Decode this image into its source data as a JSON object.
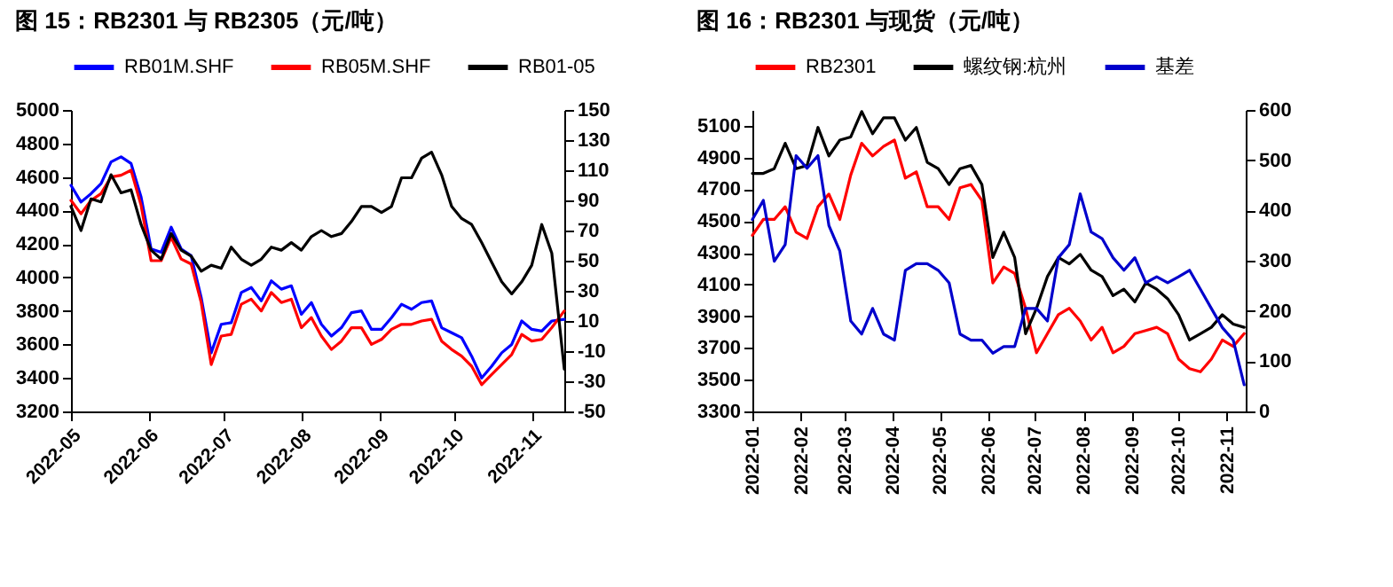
{
  "chart_data": [
    {
      "type": "line",
      "title": "图 15：RB2301 与 RB2305（元/吨）",
      "legend": "top",
      "grid": false,
      "x": [
        "2022-05-01",
        "2022-05-05",
        "2022-05-09",
        "2022-05-13",
        "2022-05-17",
        "2022-05-21",
        "2022-05-25",
        "2022-05-29",
        "2022-06-02",
        "2022-06-06",
        "2022-06-10",
        "2022-06-14",
        "2022-06-18",
        "2022-06-22",
        "2022-06-26",
        "2022-06-30",
        "2022-07-04",
        "2022-07-08",
        "2022-07-12",
        "2022-07-16",
        "2022-07-20",
        "2022-07-24",
        "2022-07-28",
        "2022-08-01",
        "2022-08-05",
        "2022-08-09",
        "2022-08-13",
        "2022-08-17",
        "2022-08-21",
        "2022-08-25",
        "2022-08-29",
        "2022-09-02",
        "2022-09-06",
        "2022-09-10",
        "2022-09-14",
        "2022-09-18",
        "2022-09-22",
        "2022-09-26",
        "2022-09-30",
        "2022-10-04",
        "2022-10-08",
        "2022-10-12",
        "2022-10-16",
        "2022-10-20",
        "2022-10-24",
        "2022-10-28",
        "2022-11-01",
        "2022-11-05",
        "2022-11-09",
        "2022-11-14"
      ],
      "xlim": [
        "2022-05-01",
        "2022-11-14"
      ],
      "xticks": [
        {
          "value": "2022-05",
          "label": "2022-05"
        },
        {
          "value": "2022-06",
          "label": "2022-06"
        },
        {
          "value": "2022-07",
          "label": "2022-07"
        },
        {
          "value": "2022-08",
          "label": "2022-08"
        },
        {
          "value": "2022-09",
          "label": "2022-09"
        },
        {
          "value": "2022-10",
          "label": "2022-10"
        },
        {
          "value": "2022-11",
          "label": "2022-11"
        }
      ],
      "ylim": [
        3200,
        5000
      ],
      "yticks": [
        3200,
        3400,
        3600,
        3800,
        4000,
        4200,
        4400,
        4600,
        4800,
        5000
      ],
      "y2lim": [
        -50,
        150
      ],
      "y2ticks": [
        -50,
        -30,
        -10,
        10,
        30,
        50,
        70,
        90,
        110,
        130,
        150
      ],
      "series": [
        {
          "name": "RB01M.SHF",
          "color": "#0000ff",
          "values": [
            4550,
            4450,
            4500,
            4560,
            4690,
            4720,
            4680,
            4480,
            4170,
            4150,
            4300,
            4170,
            4130,
            3880,
            3550,
            3720,
            3730,
            3910,
            3940,
            3860,
            3980,
            3930,
            3950,
            3780,
            3850,
            3720,
            3650,
            3700,
            3790,
            3800,
            3690,
            3690,
            3760,
            3840,
            3810,
            3850,
            3860,
            3700,
            3670,
            3640,
            3530,
            3400,
            3470,
            3550,
            3600,
            3740,
            3690,
            3680,
            3740,
            3750
          ]
        },
        {
          "name": "RB05M.SHF",
          "color": "#ff0000",
          "values": [
            4460,
            4380,
            4460,
            4500,
            4600,
            4610,
            4640,
            4430,
            4100,
            4100,
            4240,
            4110,
            4080,
            3850,
            3480,
            3650,
            3660,
            3840,
            3870,
            3800,
            3910,
            3850,
            3870,
            3700,
            3760,
            3650,
            3570,
            3620,
            3700,
            3700,
            3600,
            3630,
            3690,
            3720,
            3720,
            3740,
            3750,
            3620,
            3570,
            3530,
            3470,
            3360,
            3420,
            3480,
            3540,
            3660,
            3620,
            3630,
            3700,
            3800
          ]
        },
        {
          "name": "RB01-05",
          "color": "#000000",
          "axis": "y2",
          "values": [
            86,
            70,
            91,
            89,
            107,
            95,
            97,
            74,
            57,
            51,
            68,
            57,
            53,
            43,
            47,
            45,
            59,
            51,
            47,
            51,
            59,
            57,
            62,
            57,
            66,
            70,
            66,
            68,
            76,
            86,
            86,
            82,
            86,
            105,
            105,
            118,
            122,
            107,
            86,
            78,
            74,
            62,
            49,
            36,
            28,
            36,
            47,
            74,
            55,
            -22
          ]
        }
      ]
    },
    {
      "type": "line",
      "title": "图 16：RB2301 与现货（元/吨）",
      "legend": "top",
      "grid": false,
      "x": [
        "2022-01-01",
        "2022-01-08",
        "2022-01-15",
        "2022-01-22",
        "2022-01-29",
        "2022-02-05",
        "2022-02-12",
        "2022-02-19",
        "2022-02-26",
        "2022-03-05",
        "2022-03-12",
        "2022-03-19",
        "2022-03-26",
        "2022-04-02",
        "2022-04-09",
        "2022-04-16",
        "2022-04-23",
        "2022-04-30",
        "2022-05-07",
        "2022-05-14",
        "2022-05-21",
        "2022-05-28",
        "2022-06-04",
        "2022-06-11",
        "2022-06-18",
        "2022-06-25",
        "2022-07-02",
        "2022-07-09",
        "2022-07-16",
        "2022-07-23",
        "2022-07-30",
        "2022-08-06",
        "2022-08-13",
        "2022-08-20",
        "2022-08-27",
        "2022-09-03",
        "2022-09-10",
        "2022-09-17",
        "2022-09-24",
        "2022-10-01",
        "2022-10-08",
        "2022-10-15",
        "2022-10-22",
        "2022-10-29",
        "2022-11-05",
        "2022-11-12"
      ],
      "xlim": [
        "2022-01-01",
        "2022-11-13"
      ],
      "xticks": [
        {
          "value": "2022-01",
          "label": "2022-01"
        },
        {
          "value": "2022-02",
          "label": "2022-02"
        },
        {
          "value": "2022-03",
          "label": "2022-03"
        },
        {
          "value": "2022-04",
          "label": "2022-04"
        },
        {
          "value": "2022-05",
          "label": "2022-05"
        },
        {
          "value": "2022-06",
          "label": "2022-06"
        },
        {
          "value": "2022-07",
          "label": "2022-07"
        },
        {
          "value": "2022-08",
          "label": "2022-08"
        },
        {
          "value": "2022-09",
          "label": "2022-09"
        },
        {
          "value": "2022-10",
          "label": "2022-10"
        },
        {
          "value": "2022-11",
          "label": "2022-11"
        }
      ],
      "ylim": [
        3300,
        5200
      ],
      "yticks": [
        3300,
        3500,
        3700,
        3900,
        4100,
        4300,
        4500,
        4700,
        4900,
        5100
      ],
      "y2lim": [
        0,
        600
      ],
      "y2ticks": [
        0,
        100,
        200,
        300,
        400,
        500,
        600
      ],
      "series": [
        {
          "name": "RB2301",
          "color": "#ff0000",
          "values": [
            4410,
            4510,
            4510,
            4590,
            4430,
            4390,
            4590,
            4670,
            4510,
            4790,
            4990,
            4910,
            4970,
            5010,
            4770,
            4810,
            4590,
            4590,
            4510,
            4710,
            4730,
            4630,
            4110,
            4210,
            4170,
            3950,
            3670,
            3790,
            3910,
            3950,
            3870,
            3750,
            3830,
            3670,
            3710,
            3790,
            3810,
            3830,
            3790,
            3630,
            3570,
            3550,
            3630,
            3750,
            3710,
            3790
          ]
        },
        {
          "name": "螺纹钢:杭州",
          "color": "#000000",
          "values": [
            4800,
            4800,
            4830,
            4990,
            4830,
            4850,
            5090,
            4910,
            5010,
            5030,
            5190,
            5050,
            5150,
            5150,
            5010,
            5090,
            4870,
            4830,
            4730,
            4830,
            4850,
            4730,
            4270,
            4430,
            4270,
            3790,
            3950,
            4150,
            4270,
            4230,
            4290,
            4190,
            4150,
            4030,
            4070,
            3990,
            4110,
            4070,
            4010,
            3910,
            3750,
            3790,
            3830,
            3910,
            3850,
            3830
          ]
        },
        {
          "name": "基差",
          "color": "#0000cc",
          "axis": "y2",
          "values": [
            382,
            420,
            299,
            332,
            509,
            484,
            509,
            370,
            319,
            180,
            154,
            205,
            154,
            142,
            281,
            294,
            294,
            281,
            256,
            154,
            142,
            142,
            116,
            129,
            129,
            205,
            205,
            180,
            306,
            332,
            433,
            357,
            344,
            306,
            281,
            306,
            256,
            268,
            256,
            268,
            281,
            243,
            205,
            167,
            142,
            53
          ]
        }
      ]
    }
  ]
}
